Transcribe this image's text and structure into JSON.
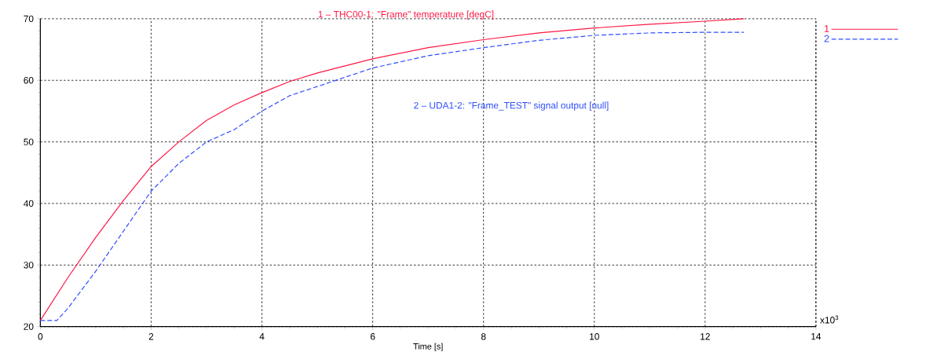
{
  "chart_data": {
    "type": "line",
    "xlabel": "Time [s]",
    "annotations": [
      "1 – THC00-1: \"Frame\" temperature [degC]",
      "2 – UDA1-2: \"Frame_TEST\" signal output [null]",
      "x10$^{3}$"
    ],
    "series": [
      {
        "name": "1",
        "color": "#ff1744",
        "line_style": "solid",
        "x": [
          0,
          0.5,
          1,
          1.5,
          2,
          2.5,
          3,
          3.5,
          4,
          4.5,
          5,
          6,
          7,
          8,
          9,
          10,
          11,
          12,
          12.7
        ],
        "values": [
          21,
          28,
          34.5,
          40.5,
          46,
          50,
          53.5,
          56,
          58,
          59.8,
          61.2,
          63.5,
          65.3,
          66.6,
          67.7,
          68.5,
          69.1,
          69.6,
          70
        ]
      },
      {
        "name": "2",
        "color": "#2f4fff",
        "line_style": "dashed",
        "x": [
          0,
          0.3,
          0.5,
          1,
          1.5,
          2,
          2.5,
          3,
          3.5,
          4,
          4.5,
          5,
          6,
          7,
          8,
          9,
          10,
          11,
          12,
          12.7
        ],
        "values": [
          21,
          21,
          23,
          29,
          35.5,
          42,
          46.5,
          50,
          52,
          55,
          57.5,
          59,
          62,
          64,
          65.3,
          66.5,
          67.3,
          67.7,
          67.8,
          67.8
        ]
      }
    ],
    "xlim": [
      0,
      14
    ],
    "ylim": [
      20,
      70
    ],
    "xticks": [
      0,
      2,
      4,
      6,
      8,
      10,
      12,
      14
    ],
    "yticks": [
      20,
      30,
      40,
      50,
      60,
      70
    ],
    "grid": true,
    "legend": "top right",
    "marker": "none"
  }
}
